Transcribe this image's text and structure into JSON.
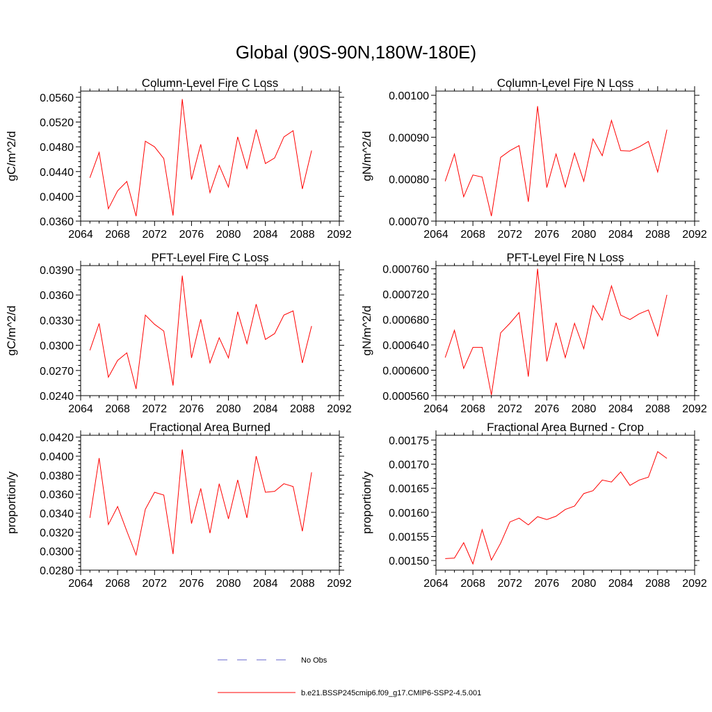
{
  "title": "Global (90S-90N,180W-180E)",
  "colors": {
    "series": "#ff0000",
    "obs": "#6666cc",
    "axis": "#000000"
  },
  "legend": {
    "placement": "bottom-center",
    "entries": [
      {
        "label": "No Obs",
        "color": "#6666cc",
        "style": "dashed"
      },
      {
        "label": "b.e21.BSSP245cmip6.f09_g17.CMIP6-SSP2-4.5.001",
        "color": "#ff0000",
        "style": "solid"
      }
    ]
  },
  "chart_data": [
    {
      "type": "line",
      "title": "Column-Level Fire C Loss",
      "ylabel": "gC/m^2/d",
      "xlim": [
        2064,
        2092
      ],
      "ylim": [
        0.036,
        0.057
      ],
      "xticks": [
        2064,
        2068,
        2072,
        2076,
        2080,
        2084,
        2088,
        2092
      ],
      "yticks": [
        0.036,
        0.04,
        0.044,
        0.048,
        0.052,
        0.056
      ],
      "ytick_labels": [
        "0.0360",
        "0.0400",
        "0.0440",
        "0.0480",
        "0.0520",
        "0.0560"
      ],
      "x": [
        2065,
        2066,
        2067,
        2068,
        2069,
        2070,
        2071,
        2072,
        2073,
        2074,
        2075,
        2076,
        2077,
        2078,
        2079,
        2080,
        2081,
        2082,
        2083,
        2084,
        2085,
        2086,
        2087,
        2088,
        2089
      ],
      "series": [
        {
          "name": "b.e21.BSSP245cmip6.f09_g17.CMIP6-SSP2-4.5.001",
          "values": [
            0.043,
            0.0471,
            0.038,
            0.0409,
            0.0424,
            0.0368,
            0.0489,
            0.048,
            0.0461,
            0.0369,
            0.0557,
            0.0427,
            0.0484,
            0.0406,
            0.045,
            0.0415,
            0.0496,
            0.0445,
            0.0508,
            0.0453,
            0.0462,
            0.0496,
            0.0506,
            0.0412,
            0.0474
          ]
        }
      ]
    },
    {
      "type": "line",
      "title": "Column-Level Fire N Loss",
      "ylabel": "gN/m^2/d",
      "xlim": [
        2064,
        2092
      ],
      "ylim": [
        0.0007,
        0.00101
      ],
      "xticks": [
        2064,
        2068,
        2072,
        2076,
        2080,
        2084,
        2088,
        2092
      ],
      "yticks": [
        0.0007,
        0.0008,
        0.0009,
        0.001
      ],
      "ytick_labels": [
        "0.00070",
        "0.00080",
        "0.00090",
        "0.00100"
      ],
      "x": [
        2065,
        2066,
        2067,
        2068,
        2069,
        2070,
        2071,
        2072,
        2073,
        2074,
        2075,
        2076,
        2077,
        2078,
        2079,
        2080,
        2081,
        2082,
        2083,
        2084,
        2085,
        2086,
        2087,
        2088,
        2089
      ],
      "series": [
        {
          "name": "b.e21.BSSP245cmip6.f09_g17.CMIP6-SSP2-4.5.001",
          "values": [
            0.000795,
            0.00086,
            0.000758,
            0.00081,
            0.000805,
            0.000712,
            0.000852,
            0.000868,
            0.00088,
            0.000746,
            0.000974,
            0.00078,
            0.00086,
            0.000781,
            0.000862,
            0.000795,
            0.000896,
            0.000856,
            0.00094,
            0.000868,
            0.000867,
            0.000877,
            0.00089,
            0.000817,
            0.000918
          ]
        }
      ]
    },
    {
      "type": "line",
      "title": "PFT-Level Fire C Loss",
      "ylabel": "gC/m^2/d",
      "xlim": [
        2064,
        2092
      ],
      "ylim": [
        0.024,
        0.0395
      ],
      "xticks": [
        2064,
        2068,
        2072,
        2076,
        2080,
        2084,
        2088,
        2092
      ],
      "yticks": [
        0.024,
        0.027,
        0.03,
        0.033,
        0.036,
        0.039
      ],
      "ytick_labels": [
        "0.0240",
        "0.0270",
        "0.0300",
        "0.0330",
        "0.0360",
        "0.0390"
      ],
      "x": [
        2065,
        2066,
        2067,
        2068,
        2069,
        2070,
        2071,
        2072,
        2073,
        2074,
        2075,
        2076,
        2077,
        2078,
        2079,
        2080,
        2081,
        2082,
        2083,
        2084,
        2085,
        2086,
        2087,
        2088,
        2089
      ],
      "series": [
        {
          "name": "b.e21.BSSP245cmip6.f09_g17.CMIP6-SSP2-4.5.001",
          "values": [
            0.0294,
            0.0326,
            0.0262,
            0.0282,
            0.0291,
            0.0248,
            0.0336,
            0.0325,
            0.0317,
            0.0252,
            0.0383,
            0.0285,
            0.0331,
            0.0279,
            0.0309,
            0.0285,
            0.034,
            0.0302,
            0.0349,
            0.0307,
            0.0314,
            0.0336,
            0.0341,
            0.0279,
            0.0323
          ]
        }
      ]
    },
    {
      "type": "line",
      "title": "PFT-Level Fire N Loss",
      "ylabel": "gN/m^2/d",
      "xlim": [
        2064,
        2092
      ],
      "ylim": [
        0.00056,
        0.000765
      ],
      "xticks": [
        2064,
        2068,
        2072,
        2076,
        2080,
        2084,
        2088,
        2092
      ],
      "yticks": [
        0.00056,
        0.0006,
        0.00064,
        0.00068,
        0.00072,
        0.00076
      ],
      "ytick_labels": [
        "0.000560",
        "0.000600",
        "0.000640",
        "0.000680",
        "0.000720",
        "0.000760"
      ],
      "x": [
        2065,
        2066,
        2067,
        2068,
        2069,
        2070,
        2071,
        2072,
        2073,
        2074,
        2075,
        2076,
        2077,
        2078,
        2079,
        2080,
        2081,
        2082,
        2083,
        2084,
        2085,
        2086,
        2087,
        2088,
        2089
      ],
      "series": [
        {
          "name": "b.e21.BSSP245cmip6.f09_g17.CMIP6-SSP2-4.5.001",
          "values": [
            0.00062,
            0.000663,
            0.000603,
            0.000636,
            0.000636,
            0.000561,
            0.000659,
            0.000674,
            0.000691,
            0.00059,
            0.00076,
            0.000614,
            0.000675,
            0.00062,
            0.000674,
            0.000634,
            0.000702,
            0.000679,
            0.000733,
            0.000687,
            0.00068,
            0.000689,
            0.000695,
            0.000654,
            0.000719
          ]
        }
      ]
    },
    {
      "type": "line",
      "title": "Fractional Area Burned",
      "ylabel": "proportion/y",
      "xlim": [
        2064,
        2092
      ],
      "ylim": [
        0.028,
        0.0422
      ],
      "xticks": [
        2064,
        2068,
        2072,
        2076,
        2080,
        2084,
        2088,
        2092
      ],
      "yticks": [
        0.028,
        0.03,
        0.032,
        0.034,
        0.036,
        0.038,
        0.04,
        0.042
      ],
      "ytick_labels": [
        "0.0280",
        "0.0300",
        "0.0320",
        "0.0340",
        "0.0360",
        "0.0380",
        "0.0400",
        "0.0420"
      ],
      "x": [
        2065,
        2066,
        2067,
        2068,
        2069,
        2070,
        2071,
        2072,
        2073,
        2074,
        2075,
        2076,
        2077,
        2078,
        2079,
        2080,
        2081,
        2082,
        2083,
        2084,
        2085,
        2086,
        2087,
        2088,
        2089
      ],
      "series": [
        {
          "name": "b.e21.BSSP245cmip6.f09_g17.CMIP6-SSP2-4.5.001",
          "values": [
            0.0335,
            0.0398,
            0.0328,
            0.0347,
            0.0321,
            0.0296,
            0.0344,
            0.0362,
            0.0359,
            0.0297,
            0.0407,
            0.0329,
            0.0366,
            0.0319,
            0.0371,
            0.0334,
            0.0375,
            0.0335,
            0.04,
            0.0362,
            0.0363,
            0.0371,
            0.0368,
            0.0321,
            0.0383
          ]
        }
      ]
    },
    {
      "type": "line",
      "title": "Fractional Area Burned - Crop",
      "ylabel": "proportion/y",
      "xlim": [
        2064,
        2092
      ],
      "ylim": [
        0.00148,
        0.00176
      ],
      "xticks": [
        2064,
        2068,
        2072,
        2076,
        2080,
        2084,
        2088,
        2092
      ],
      "yticks": [
        0.0015,
        0.00155,
        0.0016,
        0.00165,
        0.0017,
        0.00175
      ],
      "ytick_labels": [
        "0.00150",
        "0.00155",
        "0.00160",
        "0.00165",
        "0.00170",
        "0.00175"
      ],
      "x": [
        2065,
        2066,
        2067,
        2068,
        2069,
        2070,
        2071,
        2072,
        2073,
        2074,
        2075,
        2076,
        2077,
        2078,
        2079,
        2080,
        2081,
        2082,
        2083,
        2084,
        2085,
        2086,
        2087,
        2088,
        2089
      ],
      "series": [
        {
          "name": "b.e21.BSSP245cmip6.f09_g17.CMIP6-SSP2-4.5.001",
          "values": [
            0.001504,
            0.001505,
            0.001537,
            0.001493,
            0.001564,
            0.001501,
            0.001536,
            0.00158,
            0.001588,
            0.001574,
            0.001591,
            0.001585,
            0.001592,
            0.001606,
            0.001613,
            0.001639,
            0.001645,
            0.001667,
            0.001663,
            0.001684,
            0.001656,
            0.001667,
            0.001673,
            0.001726,
            0.001712
          ]
        }
      ]
    }
  ]
}
